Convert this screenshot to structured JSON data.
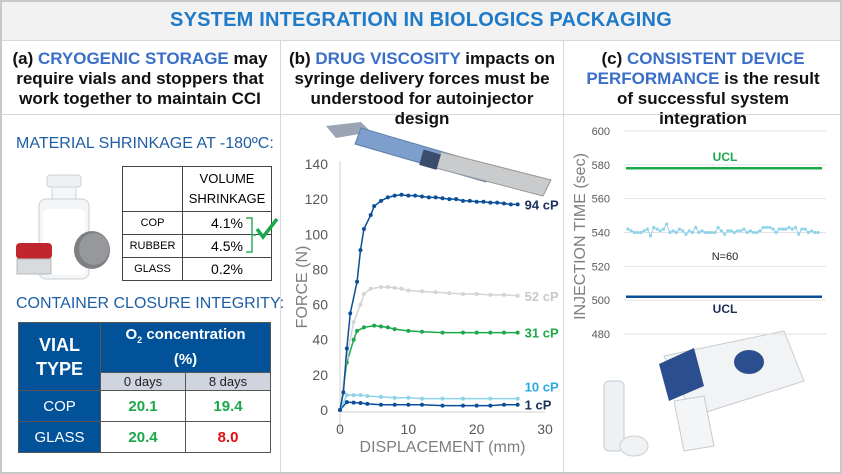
{
  "title": "SYSTEM INTEGRATION IN BIOLOGICS PACKAGING",
  "columns": [
    {
      "prefix": "(a) ",
      "highlight": "CRYOGENIC STORAGE",
      "rest": " may require vials and stoppers that work together to maintain CCI"
    },
    {
      "prefix": "(b) ",
      "highlight": "DRUG VISCOSITY",
      "rest": " impacts on syringe delivery forces must be understood for autoinjector design"
    },
    {
      "prefix": "(c) ",
      "highlight": "CONSISTENT DEVICE PERFORMANCE",
      "rest": " is the result of successful system integration"
    }
  ],
  "shrinkage": {
    "heading": "MATERIAL SHRINKAGE AT -180ºC:",
    "col_header_1": "VOLUME",
    "col_header_2": "SHRINKAGE",
    "rows": [
      {
        "material": "COP",
        "value": "4.1%"
      },
      {
        "material": "RUBBER",
        "value": "4.5%"
      },
      {
        "material": "GLASS",
        "value": "0.2%"
      }
    ]
  },
  "cci": {
    "heading": "CONTAINER CLOSURE INTEGRITY:",
    "vial_type_1": "VIAL",
    "vial_type_2": "TYPE",
    "conc_pre": "O",
    "conc_sub": "2",
    "conc_post": " concentration",
    "conc_unit": "(%)",
    "days": [
      "0 days",
      "8 days"
    ],
    "rows": [
      {
        "type": "COP",
        "d0": "20.1",
        "d8": "19.4",
        "c0": "#1aa84a",
        "c8": "#1aa84a"
      },
      {
        "type": "GLASS",
        "d0": "20.4",
        "d8": "8.0",
        "c0": "#1aa84a",
        "c8": "#e01010"
      }
    ]
  },
  "chart_data": [
    {
      "type": "line",
      "xlabel": "DISPLACEMENT (mm)",
      "ylabel": "FORCE (N)",
      "xlim": [
        0,
        30
      ],
      "ylim": [
        0,
        140
      ],
      "xticks": [
        0,
        10,
        20,
        30
      ],
      "yticks": [
        0,
        20,
        40,
        60,
        80,
        100,
        120,
        140
      ],
      "series": [
        {
          "name": "94 cP",
          "color": "#0b4f98",
          "label_color": "#1a2f5a",
          "points": [
            [
              0,
              0
            ],
            [
              0.5,
              10
            ],
            [
              1,
              35
            ],
            [
              1.5,
              55
            ],
            [
              2.5,
              73
            ],
            [
              3,
              91
            ],
            [
              3.5,
              103
            ],
            [
              4.5,
              111
            ],
            [
              5,
              116
            ],
            [
              6,
              119
            ],
            [
              7,
              121
            ],
            [
              8,
              122
            ],
            [
              9,
              122.5
            ],
            [
              10,
              122
            ],
            [
              11,
              122
            ],
            [
              12,
              121.5
            ],
            [
              13,
              121
            ],
            [
              14,
              121
            ],
            [
              15,
              120.5
            ],
            [
              16,
              120
            ],
            [
              17,
              120
            ],
            [
              18,
              119
            ],
            [
              19,
              119
            ],
            [
              20,
              118.5
            ],
            [
              21,
              118.5
            ],
            [
              22,
              118
            ],
            [
              23,
              118
            ],
            [
              24,
              117.5
            ],
            [
              25,
              117
            ],
            [
              26,
              117
            ]
          ]
        },
        {
          "name": "52 cP",
          "color": "#d4d4d4",
          "label_color": "#c8c8c8",
          "points": [
            [
              0,
              0
            ],
            [
              1,
              30
            ],
            [
              2,
              50
            ],
            [
              3,
              60
            ],
            [
              3.5,
              66
            ],
            [
              4.5,
              69
            ],
            [
              6,
              70
            ],
            [
              7,
              70
            ],
            [
              8,
              69.5
            ],
            [
              9,
              69
            ],
            [
              10,
              68
            ],
            [
              12,
              67.5
            ],
            [
              14,
              67
            ],
            [
              16,
              66.5
            ],
            [
              18,
              66
            ],
            [
              20,
              66
            ],
            [
              22,
              65.5
            ],
            [
              24,
              65.5
            ],
            [
              26,
              65
            ]
          ]
        },
        {
          "name": "31 cP",
          "color": "#1aa84a",
          "label_color": "#1aa84a",
          "points": [
            [
              0,
              0
            ],
            [
              1,
              27
            ],
            [
              2,
              40
            ],
            [
              2.5,
              45
            ],
            [
              3.5,
              47
            ],
            [
              5,
              48
            ],
            [
              6,
              47.5
            ],
            [
              7,
              47
            ],
            [
              8,
              46
            ],
            [
              10,
              45
            ],
            [
              12,
              44.5
            ],
            [
              15,
              44
            ],
            [
              18,
              44
            ],
            [
              20,
              44
            ],
            [
              22,
              44
            ],
            [
              24,
              44
            ],
            [
              26,
              44
            ]
          ]
        },
        {
          "name": "10 cP",
          "color": "#8fd3e8",
          "label_color": "#29a9e0",
          "points": [
            [
              0,
              0
            ],
            [
              1,
              8.5
            ],
            [
              2,
              8.5
            ],
            [
              3,
              8.5
            ],
            [
              4,
              8
            ],
            [
              6,
              7.5
            ],
            [
              8,
              7
            ],
            [
              10,
              7
            ],
            [
              12,
              6.5
            ],
            [
              15,
              6.5
            ],
            [
              18,
              6.5
            ],
            [
              22,
              6.5
            ],
            [
              26,
              6.5
            ]
          ]
        },
        {
          "name": "1 cP",
          "color": "#0b4f98",
          "label_color": "#1a2f5a",
          "points": [
            [
              0,
              0
            ],
            [
              1,
              4.5
            ],
            [
              2,
              4.2
            ],
            [
              3,
              4
            ],
            [
              4,
              3.5
            ],
            [
              6,
              3
            ],
            [
              8,
              3
            ],
            [
              10,
              3
            ],
            [
              12,
              3
            ],
            [
              15,
              2.5
            ],
            [
              18,
              2.5
            ],
            [
              20,
              2.5
            ],
            [
              22,
              2.5
            ],
            [
              24,
              3
            ],
            [
              26,
              3
            ]
          ]
        }
      ]
    },
    {
      "type": "line",
      "ylabel": "INJECTION TIME (sec)",
      "ylim": [
        480,
        600
      ],
      "yticks": [
        480,
        500,
        520,
        540,
        560,
        580,
        600
      ],
      "annotation": "N=60",
      "ucl": {
        "label": "UCL",
        "value": 578,
        "color": "#1aa84a"
      },
      "lcl": {
        "label": "UCL",
        "value": 502,
        "color": "#0b4f98"
      },
      "series": [
        {
          "name": "injection time",
          "color": "#8fd3e8",
          "values": [
            542,
            541,
            540,
            540,
            540,
            541,
            542,
            538,
            543,
            542,
            541,
            542,
            545,
            540,
            541,
            540,
            542,
            541,
            539,
            541,
            540,
            543,
            540,
            541,
            540,
            540,
            540,
            540,
            543,
            541,
            539,
            541,
            541,
            540,
            541,
            541,
            542,
            540,
            541,
            540,
            540,
            541,
            543,
            543,
            543,
            542,
            540,
            542,
            542,
            542,
            543,
            542,
            543,
            539,
            542,
            542,
            540,
            541,
            540,
            540
          ]
        }
      ]
    }
  ]
}
